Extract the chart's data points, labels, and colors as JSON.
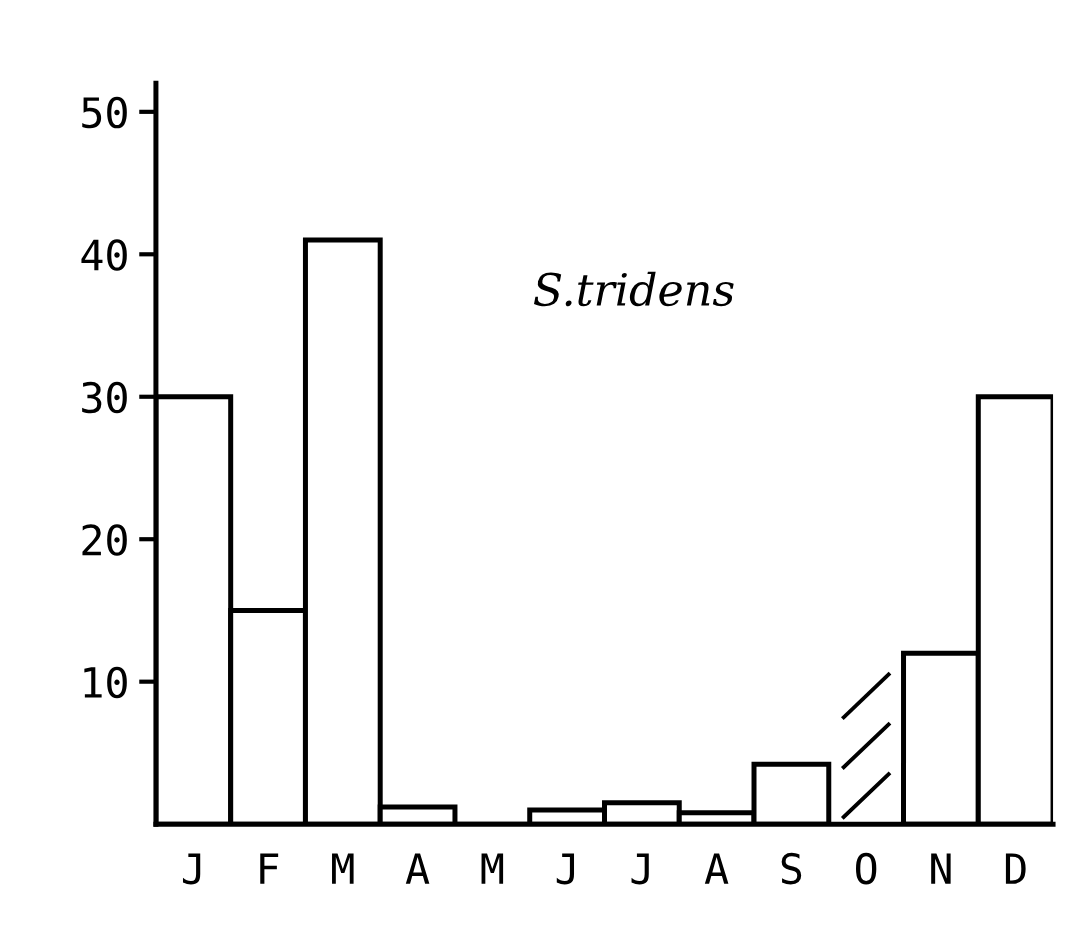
{
  "chart_data": {
    "type": "bar",
    "categories": [
      "J",
      "F",
      "M",
      "A",
      "M",
      "J",
      "J",
      "A",
      "S",
      "O",
      "N",
      "D"
    ],
    "values": [
      30,
      15,
      41,
      1.2,
      0,
      1,
      1.5,
      0.8,
      4.2,
      null,
      12,
      30
    ],
    "color": "#ffffff",
    "ylim": [
      0,
      52
    ],
    "yticks": [
      10,
      20,
      30,
      40,
      50
    ],
    "grid": false,
    "legend": false,
    "annotations": [
      "S.tridens"
    ]
  }
}
